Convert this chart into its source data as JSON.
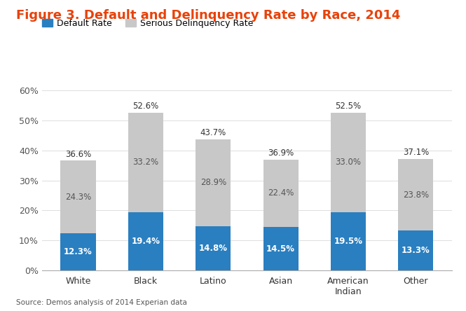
{
  "title": "Figure 3. Default and Delinquency Rate by Race, 2014",
  "title_color": "#e8420a",
  "categories": [
    "White",
    "Black",
    "Latino",
    "Asian",
    "American\nIndian",
    "Other"
  ],
  "default_rates": [
    12.3,
    19.4,
    14.8,
    14.5,
    19.5,
    13.3
  ],
  "delinquency_rates": [
    24.3,
    33.2,
    28.9,
    22.4,
    33.0,
    23.8
  ],
  "total_labels": [
    36.6,
    52.6,
    43.7,
    36.9,
    52.5,
    37.1
  ],
  "default_color": "#2a7fc0",
  "delinquency_color": "#c8c8c8",
  "default_label": "Default Rate",
  "delinquency_label": "Serious Delinquency Rate",
  "ylim": [
    0,
    60
  ],
  "yticks": [
    0,
    10,
    20,
    30,
    40,
    50,
    60
  ],
  "ytick_labels": [
    "0%",
    "10%",
    "20%",
    "30%",
    "40%",
    "50%",
    "60%"
  ],
  "source_text": "Source: Demos analysis of 2014 Experian data",
  "background_color": "#ffffff",
  "bar_width": 0.52,
  "legend_fontsize": 9,
  "title_fontsize": 13,
  "tick_fontsize": 9,
  "label_fontsize": 8.5
}
